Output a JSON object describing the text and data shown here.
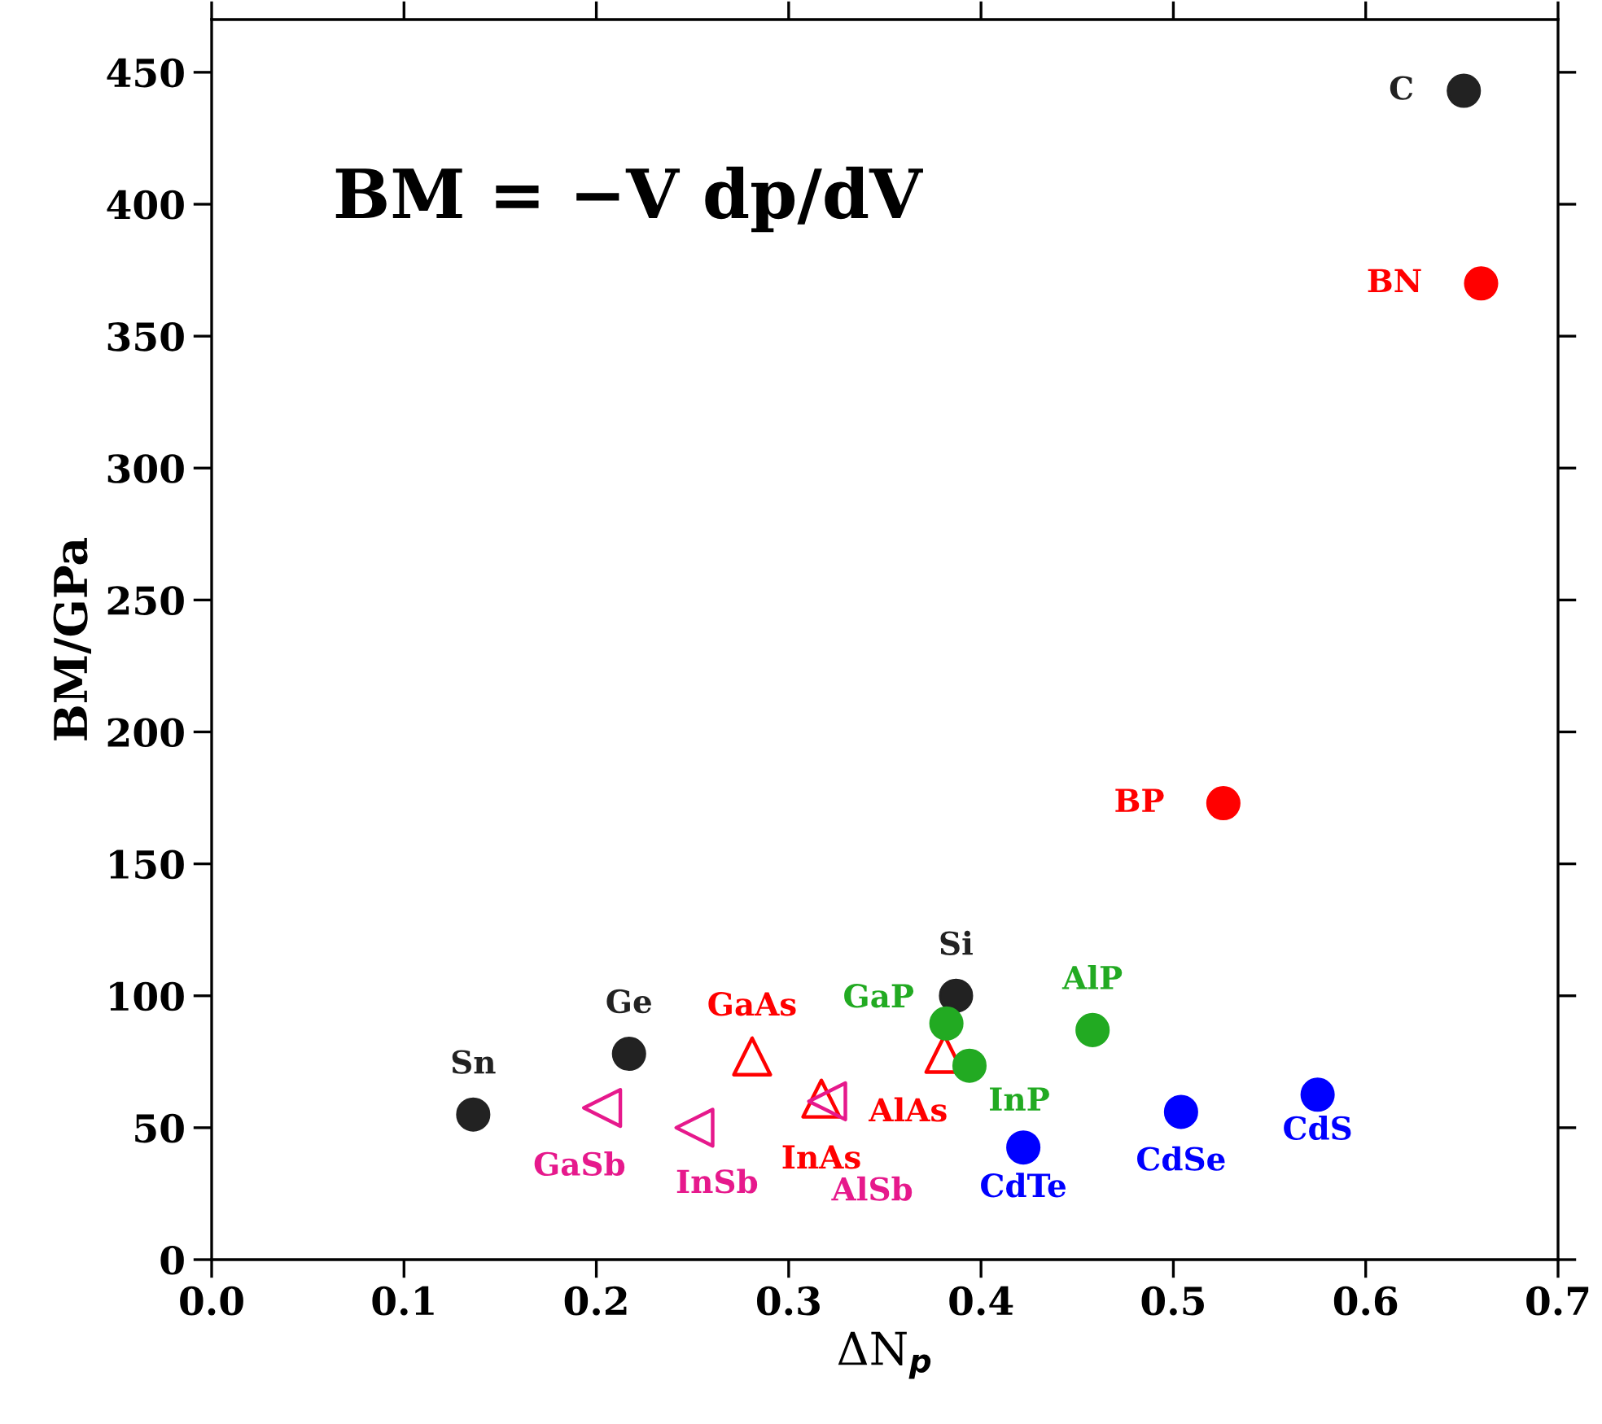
{
  "chart_data": {
    "type": "scatter",
    "xlabel": "ΔN$_{p}$",
    "ylabel": "BM/GPa",
    "xlim": [
      0,
      0.7
    ],
    "ylim": [
      0,
      470
    ],
    "xticks": [
      {
        "value": 0,
        "label": "0.0"
      },
      0.1,
      0.2,
      0.3,
      0.4,
      0.5,
      0.6,
      0.7
    ],
    "yticks": [
      0,
      50,
      100,
      150,
      200,
      250,
      300,
      350,
      400,
      450
    ],
    "grid": false,
    "legend": false,
    "series": [
      {
        "color": "#222222",
        "marker": "circle",
        "x": [
          0.136,
          0.217,
          0.387,
          0.651
        ],
        "values": [
          55,
          78,
          100,
          443
        ]
      },
      {
        "color": "#ff0000",
        "marker": "circle",
        "x": [
          0.526,
          0.66
        ],
        "values": [
          173,
          370
        ]
      },
      {
        "color": "#ff0000",
        "marker": "triangle",
        "x": [
          0.281,
          0.317,
          0.381
        ],
        "values": [
          77,
          61,
          78
        ]
      },
      {
        "color": "#22aa22",
        "marker": "circle",
        "x": [
          0.382,
          0.394,
          0.458
        ],
        "values": [
          89.5,
          73.5,
          87
        ]
      },
      {
        "color": "#0000ff",
        "marker": "circle",
        "x": [
          0.422,
          0.504,
          0.575
        ],
        "values": [
          42.5,
          56,
          62.5
        ]
      },
      {
        "color": "#e6198c",
        "marker": "triangle_left",
        "x": [
          0.203,
          0.251,
          0.32
        ],
        "values": [
          57.5,
          50,
          60
        ]
      }
    ],
    "annotations": [
      "BM = −V dp/dV",
      {
        "text": "Sn",
        "x": 0.136,
        "y": 55
      },
      {
        "text": "Ge",
        "x": 0.217,
        "y": 78
      },
      {
        "text": "Si",
        "x": 0.387,
        "y": 100
      },
      {
        "text": "C",
        "x": 0.651,
        "y": 443
      },
      {
        "text": "BP",
        "x": 0.526,
        "y": 173
      },
      {
        "text": "BN",
        "x": 0.66,
        "y": 370
      },
      {
        "text": "GaAs",
        "x": 0.281,
        "y": 77
      },
      {
        "text": "InAs",
        "x": 0.317,
        "y": 61
      },
      {
        "text": "AlAs",
        "x": 0.381,
        "y": 78
      },
      {
        "text": "GaP",
        "x": 0.382,
        "y": 89.5
      },
      {
        "text": "InP",
        "x": 0.394,
        "y": 73.5
      },
      {
        "text": "AlP",
        "x": 0.458,
        "y": 87
      },
      {
        "text": "CdTe",
        "x": 0.422,
        "y": 42.5
      },
      {
        "text": "CdSe",
        "x": 0.504,
        "y": 56
      },
      {
        "text": "CdS",
        "x": 0.575,
        "y": 62.5
      },
      {
        "text": "GaSb",
        "x": 0.203,
        "y": 57.5
      },
      {
        "text": "InSb",
        "x": 0.251,
        "y": 50
      },
      {
        "text": "AlSb",
        "x": 0.32,
        "y": 60
      }
    ]
  }
}
